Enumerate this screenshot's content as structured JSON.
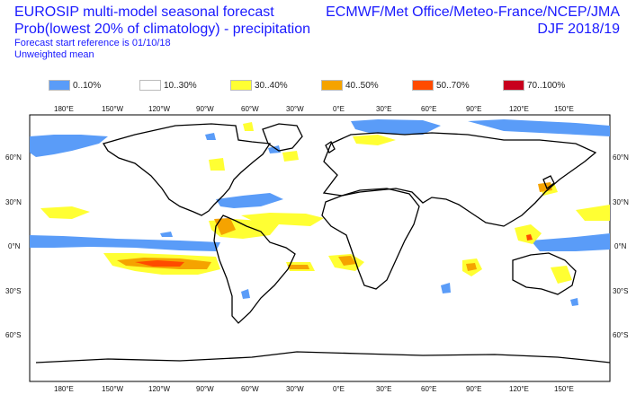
{
  "header": {
    "title_line1": "EUROSIP multi-model seasonal forecast",
    "title_line2": "Prob(lowest 20% of climatology) - precipitation",
    "sub_line1": "Forecast start reference is 01/10/18",
    "sub_line2": "Unweighted mean",
    "right_line1": "ECMWF/Met Office/Meteo-France/NCEP/JMA",
    "right_line2": "DJF 2018/19"
  },
  "legend": [
    {
      "label": "0..10%",
      "color": "#5a9cf8"
    },
    {
      "label": "10..30%",
      "color": "#ffffff"
    },
    {
      "label": "30..40%",
      "color": "#ffff33"
    },
    {
      "label": "40..50%",
      "color": "#f5a300"
    },
    {
      "label": "50..70%",
      "color": "#ff4b00"
    },
    {
      "label": "70..100%",
      "color": "#c8001e"
    }
  ],
  "axes": {
    "lon_top": [
      "180°E",
      "150°W",
      "120°W",
      "90°W",
      "60°W",
      "30°W",
      "0°E",
      "30°E",
      "60°E",
      "90°E",
      "120°E",
      "150°E"
    ],
    "lon_bottom": [
      "180°E",
      "150°W",
      "120°W",
      "90°W",
      "60°W",
      "30°W",
      "0°E",
      "30°E",
      "60°E",
      "90°E",
      "120°E",
      "150°E"
    ],
    "lat_left": [
      "60°N",
      "30°N",
      "0°N",
      "30°S",
      "60°S"
    ],
    "lat_right": [
      "60°N",
      "30°N",
      "0°N",
      "30°S",
      "60°S"
    ]
  }
}
